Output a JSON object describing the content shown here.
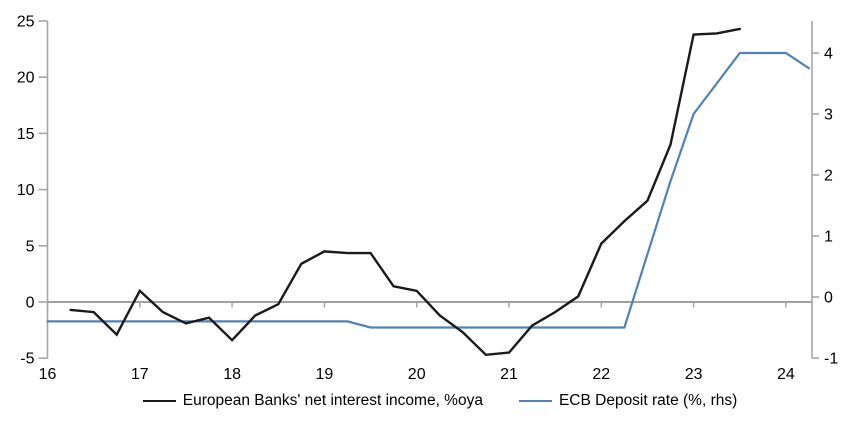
{
  "chart_data": {
    "type": "line",
    "title": "",
    "x_axis": {
      "tick_labels": [
        "16",
        "17",
        "18",
        "19",
        "20",
        "21",
        "22",
        "23",
        "24"
      ],
      "tick_values": [
        16,
        17,
        18,
        19,
        20,
        21,
        22,
        23,
        24
      ],
      "range": [
        16,
        24.3
      ],
      "axis_position_left_scale": 0
    },
    "y_axis_left": {
      "tick_labels": [
        "-5",
        "0",
        "5",
        "10",
        "15",
        "20",
        "25"
      ],
      "tick_values": [
        -5,
        0,
        5,
        10,
        15,
        20,
        25
      ],
      "range": [
        -5,
        25
      ]
    },
    "y_axis_right": {
      "tick_labels": [
        "-1",
        "0",
        "1",
        "2",
        "3",
        "4"
      ],
      "tick_values": [
        -1,
        0,
        1,
        2,
        3,
        4
      ],
      "range": [
        -1,
        4.55
      ]
    },
    "grid": "off",
    "legend_position": "bottom",
    "series": [
      {
        "id": "net-interest-income",
        "name": "European Banks' net interest income, %oya",
        "axis": "left",
        "color": "#1a1a1a",
        "width": 2.4,
        "x": [
          16.25,
          16.5,
          16.75,
          17.0,
          17.25,
          17.5,
          17.75,
          18.0,
          18.25,
          18.5,
          18.75,
          19.0,
          19.25,
          19.5,
          19.75,
          20.0,
          20.25,
          20.5,
          20.75,
          21.0,
          21.25,
          21.5,
          21.75,
          22.0,
          22.25,
          22.5,
          22.75,
          23.0,
          23.25,
          23.5
        ],
        "y": [
          -0.7,
          -0.9,
          -2.9,
          1.0,
          -0.9,
          -1.9,
          -1.4,
          -3.4,
          -1.2,
          -0.2,
          3.4,
          4.5,
          4.35,
          4.35,
          1.4,
          1.0,
          -1.2,
          -2.7,
          -4.7,
          -4.5,
          -2.1,
          -0.9,
          0.5,
          5.2,
          7.2,
          9.0,
          14.0,
          23.8,
          23.9,
          24.3
        ]
      },
      {
        "id": "ecb-deposit-rate",
        "name": "ECB Deposit rate (%, rhs)",
        "axis": "right",
        "color": "#4f81bd",
        "width": 2.2,
        "x": [
          16.0,
          16.25,
          16.5,
          16.75,
          17.0,
          17.25,
          17.5,
          17.75,
          18.0,
          18.25,
          18.5,
          18.75,
          19.0,
          19.25,
          19.5,
          19.75,
          20.0,
          20.25,
          20.5,
          20.75,
          21.0,
          21.25,
          21.5,
          21.75,
          22.0,
          22.25,
          22.5,
          22.75,
          23.0,
          23.25,
          23.5,
          23.75,
          24.0,
          24.25
        ],
        "y": [
          -0.4,
          -0.4,
          -0.4,
          -0.4,
          -0.4,
          -0.4,
          -0.4,
          -0.4,
          -0.4,
          -0.4,
          -0.4,
          -0.4,
          -0.4,
          -0.4,
          -0.5,
          -0.5,
          -0.5,
          -0.5,
          -0.5,
          -0.5,
          -0.5,
          -0.5,
          -0.5,
          -0.5,
          -0.5,
          -0.5,
          0.7,
          1.9,
          3.0,
          3.5,
          4.0,
          4.0,
          4.0,
          3.75
        ]
      }
    ]
  },
  "legend": {
    "items": [
      {
        "label": "European Banks' net interest income, %oya",
        "color": "#1a1a1a"
      },
      {
        "label": "ECB Deposit rate (%, rhs)",
        "color": "#4f81bd"
      }
    ]
  },
  "colors": {
    "axis_gray": "#a6a6a6",
    "zero_line_gray": "#a0a0a0",
    "black_line": "#1a1a1a",
    "blue_line": "#4f81bd",
    "text": "#000000",
    "background": "#ffffff"
  }
}
